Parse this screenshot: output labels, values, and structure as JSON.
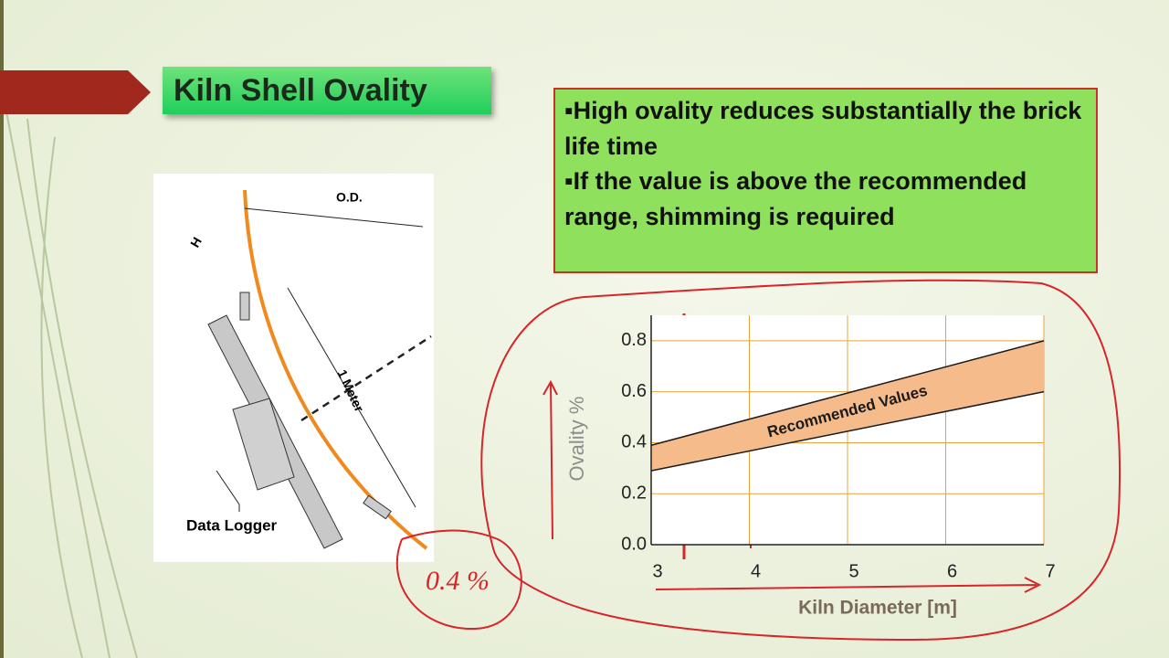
{
  "header": {
    "title": "Kiln Shell Ovality"
  },
  "bullets": [
    "High ovality reduces substantially the brick life time",
    "If the value is above the recommended range, shimming is required"
  ],
  "diagram": {
    "od_label": "O.D.",
    "h_label": "H",
    "length_label": "1 Meter",
    "logger_label": "Data Logger"
  },
  "annotations": [
    "0.4 %"
  ],
  "chart_data": {
    "type": "band",
    "x_label": "Kiln Diameter [m]",
    "y_label": "Ovality %",
    "band_label": "Recommended Values",
    "x": [
      3,
      7
    ],
    "lower": [
      0.29,
      0.6
    ],
    "upper": [
      0.39,
      0.8
    ],
    "color": "#f6bb8a",
    "line_color": "#1a1a1a",
    "grid": true,
    "grid_color": "#e8a33c",
    "xlim": [
      3,
      7
    ],
    "xticks": [
      3,
      4,
      5,
      6,
      7
    ],
    "ylim": [
      0,
      0.9
    ],
    "yticks": [
      {
        "value": 0,
        "label": "0.0"
      },
      0.2,
      0.4,
      0.6,
      0.8
    ]
  }
}
